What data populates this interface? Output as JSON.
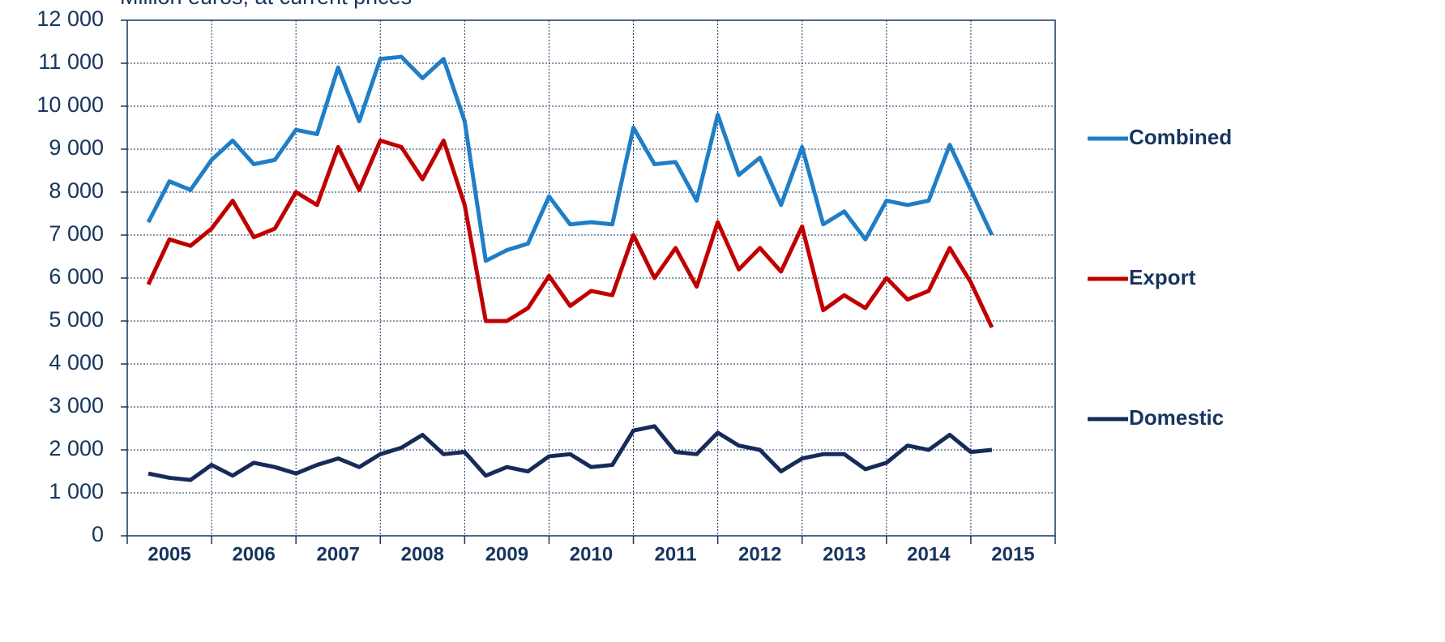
{
  "chart_data": {
    "type": "line",
    "subtitle": "Million euros, at current prices",
    "year_labels": [
      "2005",
      "2006",
      "2007",
      "2008",
      "2009",
      "2010",
      "2011",
      "2012",
      "2013",
      "2014",
      "2015"
    ],
    "series": [
      {
        "name": "Combined",
        "color": "#1f7ec6",
        "values": [
          7300,
          8250,
          8050,
          8750,
          9200,
          8650,
          8750,
          9450,
          9350,
          10900,
          9650,
          11100,
          11150,
          10650,
          11100,
          9650,
          6400,
          6650,
          6800,
          7900,
          7250,
          7300,
          7250,
          9500,
          8650,
          8700,
          7800,
          9800,
          8400,
          8800,
          7700,
          9050,
          7250,
          7550,
          6900,
          7800,
          7700,
          7800,
          9100,
          8050,
          7000
        ]
      },
      {
        "name": "Export",
        "color": "#c00000",
        "values": [
          5850,
          6900,
          6750,
          7150,
          7800,
          6950,
          7150,
          8000,
          7700,
          9050,
          8050,
          9200,
          9050,
          8300,
          9200,
          7700,
          5000,
          5000,
          5300,
          6050,
          5350,
          5700,
          5600,
          7000,
          6000,
          6700,
          5800,
          7300,
          6200,
          6700,
          6150,
          7200,
          5250,
          5600,
          5300,
          6000,
          5500,
          5700,
          6700,
          5900,
          4850
        ]
      },
      {
        "name": "Domestic",
        "color": "#172b5a",
        "values": [
          1450,
          1350,
          1300,
          1650,
          1400,
          1700,
          1600,
          1450,
          1650,
          1800,
          1600,
          1900,
          2050,
          2350,
          1900,
          1950,
          1400,
          1600,
          1500,
          1850,
          1900,
          1600,
          1650,
          2450,
          2550,
          1950,
          1900,
          2400,
          2100,
          2000,
          1500,
          1800,
          1900,
          1900,
          1550,
          1700,
          2100,
          2000,
          2350,
          1950,
          2000
        ]
      }
    ],
    "ylim": [
      0,
      12000
    ],
    "yticks": [
      0,
      {
        "value": 1000,
        "label": "1 000"
      },
      {
        "value": 2000,
        "label": "2 000"
      },
      {
        "value": 3000,
        "label": "3 000"
      },
      {
        "value": 4000,
        "label": "4 000"
      },
      {
        "value": 5000,
        "label": "5 000"
      },
      {
        "value": 6000,
        "label": "6 000"
      },
      {
        "value": 7000,
        "label": "7 000"
      },
      {
        "value": 8000,
        "label": "8 000"
      },
      {
        "value": 9000,
        "label": "9 000"
      },
      {
        "value": 10000,
        "label": "10 000"
      },
      {
        "value": 11000,
        "label": "11 000"
      },
      {
        "value": 12000,
        "label": "12 000"
      }
    ],
    "grid": true,
    "legend": "right"
  }
}
